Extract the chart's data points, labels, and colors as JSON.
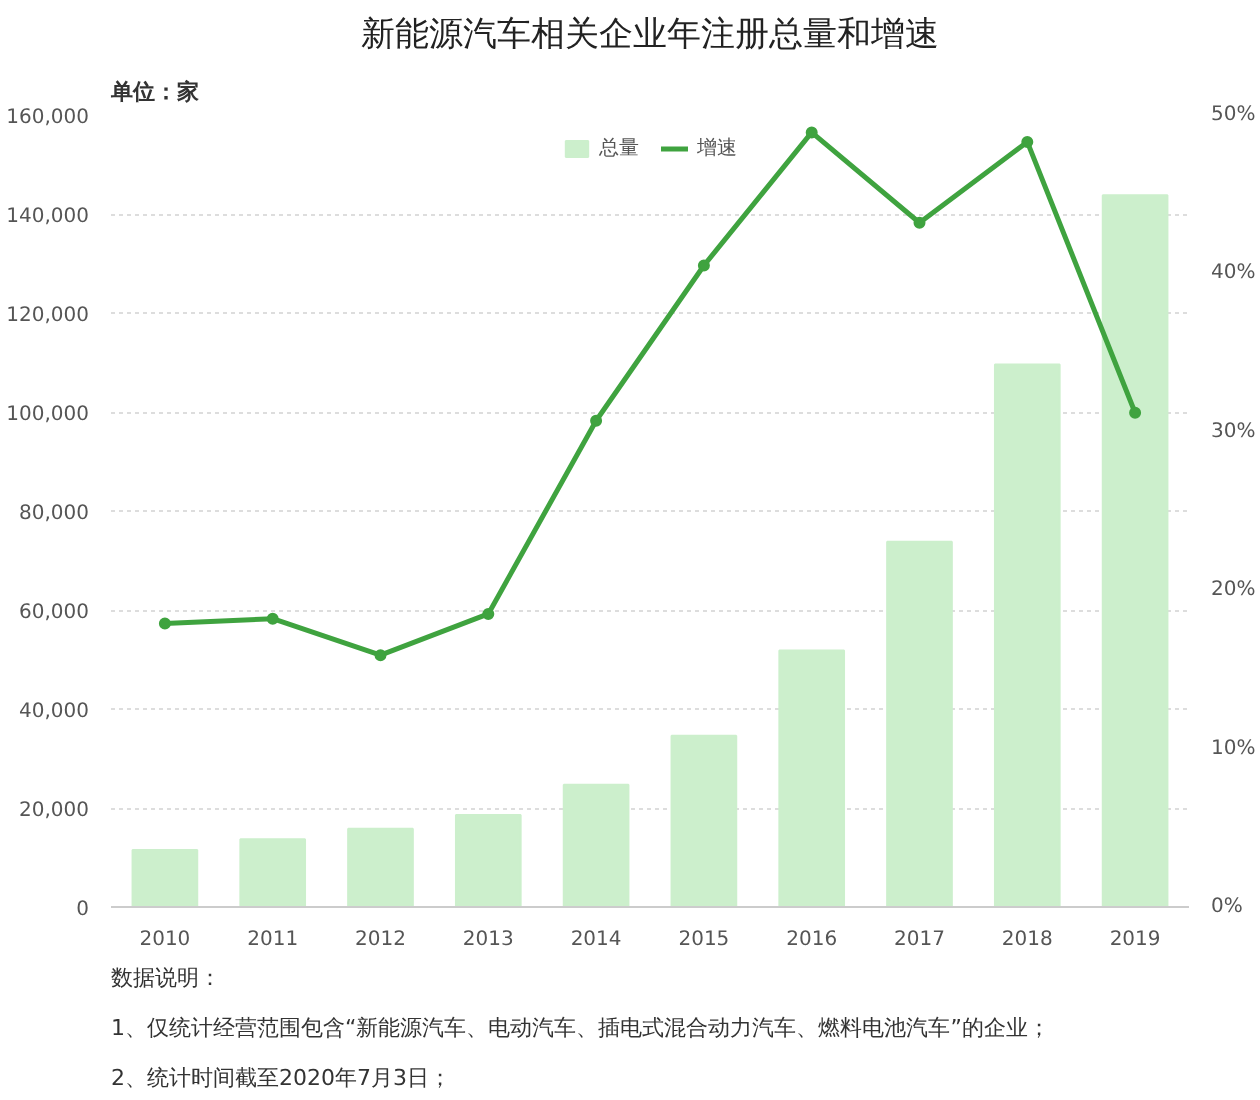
{
  "chart_data": {
    "type": "bar",
    "title": "新能源汽车相关企业年注册总量和增速",
    "ylabel": "单位：家",
    "categories": [
      "2010",
      "2011",
      "2012",
      "2013",
      "2014",
      "2015",
      "2016",
      "2017",
      "2018",
      "2019"
    ],
    "series": [
      {
        "name": "总量",
        "type": "bar",
        "color": "#ccefcc",
        "values": [
          11500,
          13700,
          15800,
          18600,
          24700,
          34600,
          51800,
          73800,
          109600,
          143800
        ]
      },
      {
        "name": "增速",
        "type": "line",
        "axis": "y2",
        "color": "#3fa33f",
        "marker": "circle",
        "values": [
          17.9,
          18.2,
          15.9,
          18.5,
          30.7,
          40.5,
          48.9,
          43.2,
          48.3,
          31.2
        ]
      }
    ],
    "ylim": [
      0,
      160000
    ],
    "yticks": [
      0,
      {
        "value": 20000,
        "label": "20,000"
      },
      {
        "value": 40000,
        "label": "40,000"
      },
      {
        "value": 60000,
        "label": "60,000"
      },
      {
        "value": 80000,
        "label": "80,000"
      },
      {
        "value": 100000,
        "label": "100,000"
      },
      {
        "value": 120000,
        "label": "120,000"
      },
      {
        "value": 140000,
        "label": "140,000"
      },
      {
        "value": 160000,
        "label": "160,000"
      }
    ],
    "y2lim": [
      0,
      50
    ],
    "y2ticks": [
      {
        "value": 0,
        "label": "0%"
      },
      {
        "value": 10,
        "label": "10%"
      },
      {
        "value": 20,
        "label": "20%"
      },
      {
        "value": 30,
        "label": "30%"
      },
      {
        "value": 40,
        "label": "40%"
      },
      {
        "value": 50,
        "label": "50%"
      }
    ],
    "grid": "y",
    "legend": "top",
    "annotations": [
      "数据说明：",
      "1、仅统计经营范围包含“新能源汽车、电动汽车、插电式混合动力汽车、燃料电池汽车”的企业；",
      "2、统计时间截至2020年7月3日；"
    ]
  }
}
